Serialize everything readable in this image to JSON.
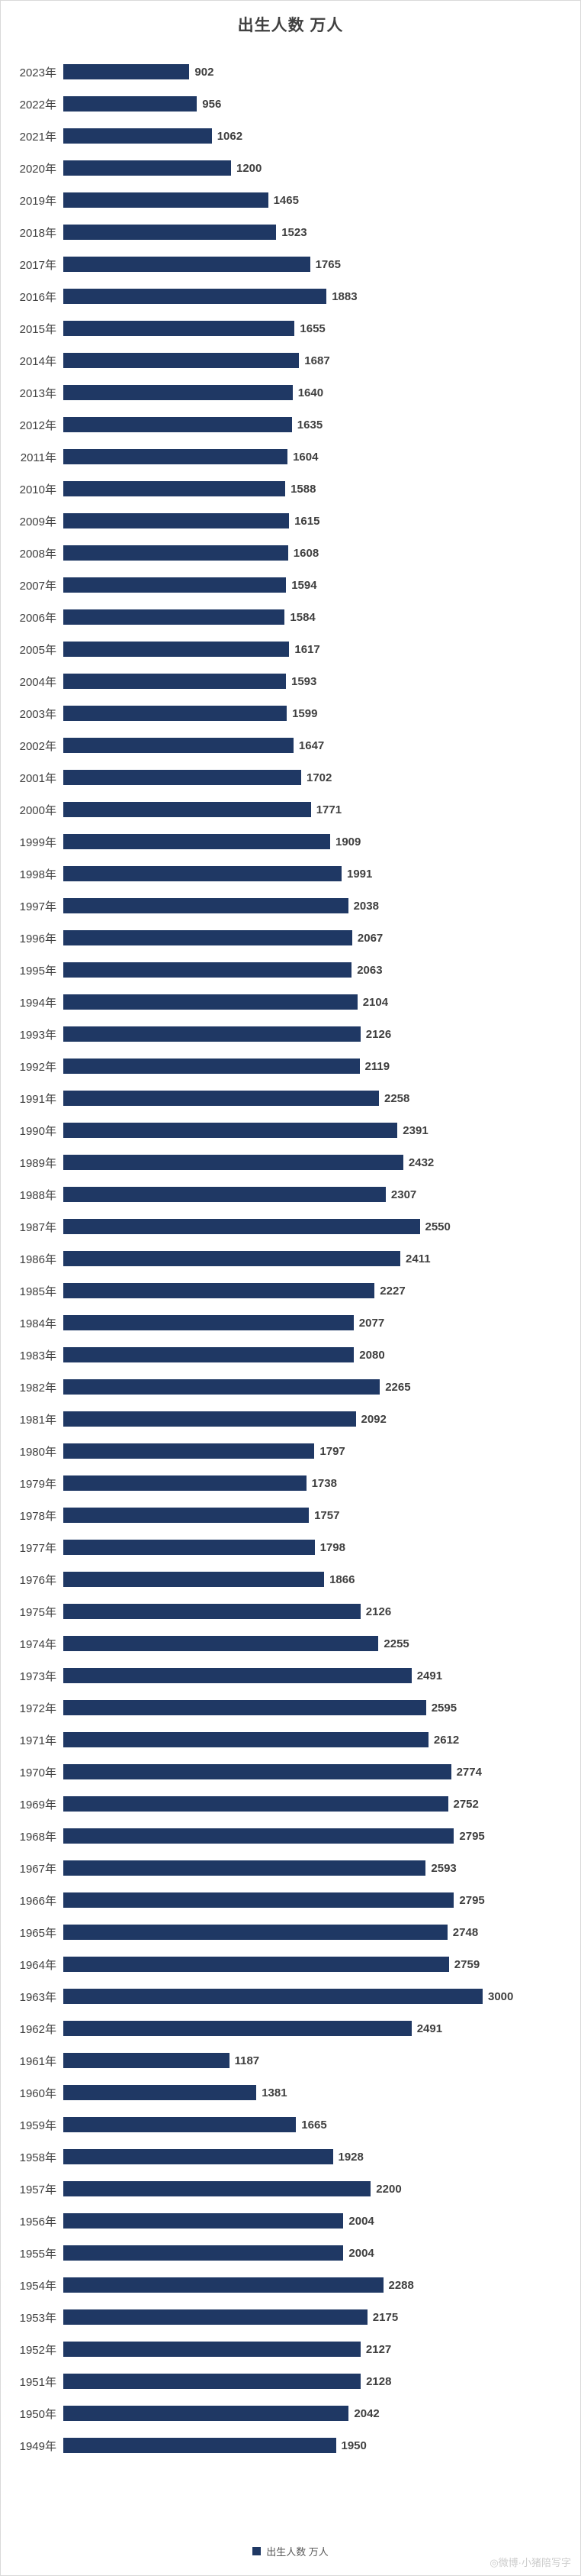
{
  "title": "出生人数 万人",
  "legend": {
    "label": "出生人数 万人",
    "color": "#1F3864"
  },
  "watermark": "◎微博·小猪陪写字",
  "chart_data": {
    "type": "bar",
    "orientation": "horizontal",
    "title": "出生人数 万人",
    "bar_color": "#1F3864",
    "value_labels": true,
    "grid": false,
    "legend_position": "bottom",
    "xlim": [
      0,
      3000
    ],
    "unit": "万人",
    "categories": [
      "2023年",
      "2022年",
      "2021年",
      "2020年",
      "2019年",
      "2018年",
      "2017年",
      "2016年",
      "2015年",
      "2014年",
      "2013年",
      "2012年",
      "2011年",
      "2010年",
      "2009年",
      "2008年",
      "2007年",
      "2006年",
      "2005年",
      "2004年",
      "2003年",
      "2002年",
      "2001年",
      "2000年",
      "1999年",
      "1998年",
      "1997年",
      "1996年",
      "1995年",
      "1994年",
      "1993年",
      "1992年",
      "1991年",
      "1990年",
      "1989年",
      "1988年",
      "1987年",
      "1986年",
      "1985年",
      "1984年",
      "1983年",
      "1982年",
      "1981年",
      "1980年",
      "1979年",
      "1978年",
      "1977年",
      "1976年",
      "1975年",
      "1974年",
      "1973年",
      "1972年",
      "1971年",
      "1970年",
      "1969年",
      "1968年",
      "1967年",
      "1966年",
      "1965年",
      "1964年",
      "1963年",
      "1962年",
      "1961年",
      "1960年",
      "1959年",
      "1958年",
      "1957年",
      "1956年",
      "1955年",
      "1954年",
      "1953年",
      "1952年",
      "1951年",
      "1950年",
      "1949年"
    ],
    "values": [
      902,
      956,
      1062,
      1200,
      1465,
      1523,
      1765,
      1883,
      1655,
      1687,
      1640,
      1635,
      1604,
      1588,
      1615,
      1608,
      1594,
      1584,
      1617,
      1593,
      1599,
      1647,
      1702,
      1771,
      1909,
      1991,
      2038,
      2067,
      2063,
      2104,
      2126,
      2119,
      2258,
      2391,
      2432,
      2307,
      2550,
      2411,
      2227,
      2077,
      2080,
      2265,
      2092,
      1797,
      1738,
      1757,
      1798,
      1866,
      2126,
      2255,
      2491,
      2595,
      2612,
      2774,
      2752,
      2795,
      2593,
      2795,
      2748,
      2759,
      3000,
      2491,
      1187,
      1381,
      1665,
      1928,
      2200,
      2004,
      2004,
      2288,
      2175,
      2127,
      2128,
      2042,
      1950
    ]
  }
}
